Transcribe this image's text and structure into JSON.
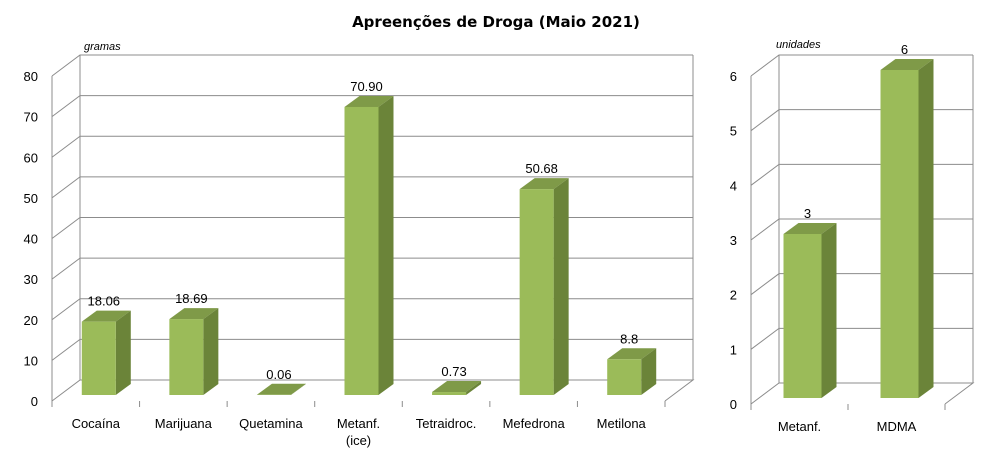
{
  "title": "Apreenções de Droga (Maio 2021)",
  "colors": {
    "bar_front": "#9bbb59",
    "bar_side": "#6b8439",
    "bar_top": "#7f9a48"
  },
  "chart_data": [
    {
      "type": "bar",
      "unit_label": "gramas",
      "categories": [
        "Cocaína",
        "Marijuana",
        "Quetamina",
        "Metanf.\n(ice)",
        "Tetraidroc.",
        "Mefedrona",
        "Metilona"
      ],
      "values": [
        18.06,
        18.69,
        0.06,
        70.9,
        0.73,
        50.68,
        8.8
      ],
      "data_labels": [
        "18.06",
        "18.69",
        "0.06",
        "70.90",
        "0.73",
        "50.68",
        "8.8"
      ],
      "ylim": [
        0,
        80
      ],
      "yticks": [
        0,
        10,
        20,
        30,
        40,
        50,
        60,
        70,
        80
      ],
      "grid": true
    },
    {
      "type": "bar",
      "unit_label": "unidades",
      "categories": [
        "Metanf.",
        "MDMA"
      ],
      "values": [
        3,
        6
      ],
      "data_labels": [
        "3",
        "6"
      ],
      "ylim": [
        0,
        6
      ],
      "yticks": [
        0,
        1,
        2,
        3,
        4,
        5,
        6
      ],
      "grid": true
    }
  ]
}
